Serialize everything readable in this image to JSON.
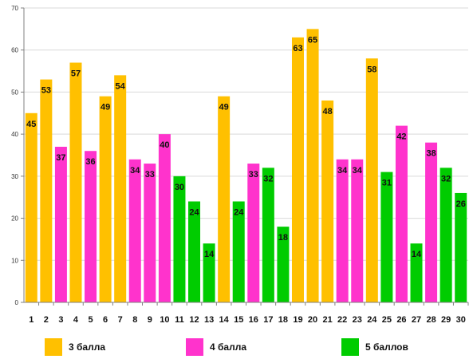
{
  "chart_data": {
    "type": "bar",
    "categories": [
      "1",
      "2",
      "3",
      "4",
      "5",
      "6",
      "7",
      "8",
      "9",
      "10",
      "11",
      "12",
      "13",
      "14",
      "15",
      "16",
      "17",
      "18",
      "19",
      "20",
      "21",
      "22",
      "23",
      "24",
      "25",
      "26",
      "27",
      "28",
      "29",
      "30"
    ],
    "values": [
      45,
      53,
      37,
      57,
      36,
      49,
      54,
      34,
      33,
      40,
      30,
      24,
      14,
      49,
      24,
      33,
      32,
      18,
      63,
      65,
      48,
      34,
      34,
      58,
      31,
      42,
      14,
      38,
      32,
      26
    ],
    "groups": [
      "3",
      "3",
      "4",
      "3",
      "4",
      "3",
      "3",
      "4",
      "4",
      "4",
      "5",
      "5",
      "5",
      "3",
      "5",
      "4",
      "5",
      "5",
      "3",
      "3",
      "3",
      "4",
      "4",
      "3",
      "5",
      "4",
      "5",
      "4",
      "5",
      "5"
    ],
    "ylim": [
      0,
      70
    ],
    "yticks": [
      0,
      10,
      20,
      30,
      40,
      50,
      60,
      70
    ],
    "grid": true,
    "legend": {
      "placement": "bottom",
      "items": [
        {
          "key": "3",
          "label": "3 балла",
          "color": "#FFC000"
        },
        {
          "key": "4",
          "label": "4 балла",
          "color": "#FF33CC"
        },
        {
          "key": "5",
          "label": "5 баллов",
          "color": "#00CC00"
        }
      ]
    }
  }
}
